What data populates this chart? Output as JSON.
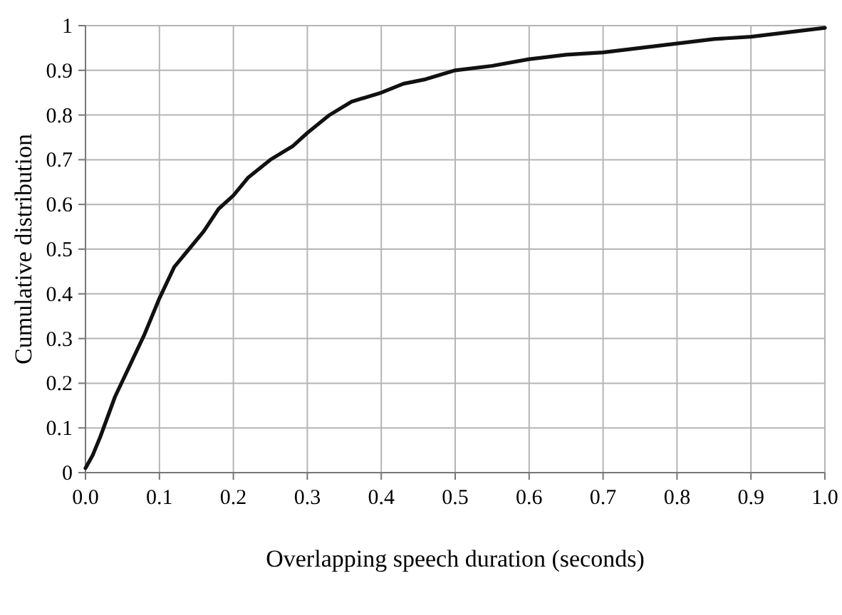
{
  "chart_data": {
    "type": "line",
    "xlabel": "Overlapping speech duration (seconds)",
    "ylabel": "Cumulative distribution",
    "x": [
      0,
      0.01,
      0.02,
      0.04,
      0.06,
      0.08,
      0.1,
      0.12,
      0.14,
      0.16,
      0.18,
      0.2,
      0.22,
      0.25,
      0.28,
      0.3,
      0.33,
      0.36,
      0.4,
      0.43,
      0.46,
      0.5,
      0.55,
      0.6,
      0.65,
      0.7,
      0.75,
      0.8,
      0.85,
      0.9,
      0.95,
      1.0
    ],
    "series": [
      {
        "color": "#111111",
        "values": [
          0.01,
          0.04,
          0.08,
          0.17,
          0.24,
          0.31,
          0.39,
          0.46,
          0.5,
          0.54,
          0.59,
          0.62,
          0.66,
          0.7,
          0.73,
          0.76,
          0.8,
          0.83,
          0.85,
          0.87,
          0.88,
          0.9,
          0.91,
          0.925,
          0.935,
          0.94,
          0.95,
          0.96,
          0.97,
          0.975,
          0.985,
          0.995
        ]
      }
    ],
    "xlim": [
      0,
      1
    ],
    "ylim": [
      0,
      1
    ],
    "xticks": [
      {
        "value": 0,
        "label": "0.0"
      },
      0.1,
      0.2,
      0.3,
      0.4,
      0.5,
      0.6,
      0.7,
      0.8,
      0.9,
      {
        "value": 1,
        "label": "1.0"
      }
    ],
    "yticks": [
      0,
      0.1,
      0.2,
      0.3,
      0.4,
      0.5,
      0.6,
      0.7,
      0.8,
      0.9,
      1
    ],
    "grid": true,
    "marker": "none",
    "line_style": "solid"
  }
}
